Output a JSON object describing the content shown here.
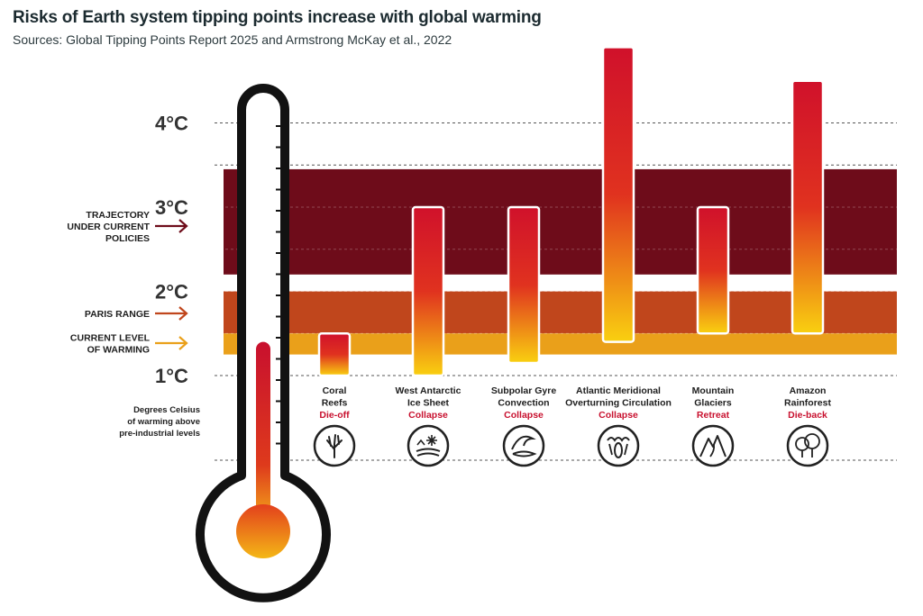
{
  "title": "Risks of Earth system tipping points increase with global warming",
  "subtitle": "Sources: Global Tipping Points Report 2025 and Armstrong McKay et al., 2022",
  "colors": {
    "trajectory_band": "#6e0c1a",
    "paris_band": "#c0461c",
    "current_band": "#eaa01a",
    "bar_top": "#d0112b",
    "bar_bottom": "#f9d010",
    "effect_text": "#c8102e",
    "thermometer_outline": "#121212"
  },
  "chart_data": {
    "type": "bar",
    "subtype": "floating-range",
    "unit": "°C",
    "y_ticks": [
      {
        "value": 1,
        "label": "1°C"
      },
      {
        "value": 2,
        "label": "2°C"
      },
      {
        "value": 3,
        "label": "3°C"
      },
      {
        "value": 4,
        "label": "4°C"
      }
    ],
    "ylim": [
      0,
      4.5
    ],
    "bands": [
      {
        "name": "Trajectory under current policies",
        "label_lines": [
          "TRAJECTORY",
          "UNDER CURRENT",
          "POLICIES"
        ],
        "from": 2.2,
        "to": 3.45
      },
      {
        "name": "Paris range",
        "label_lines": [
          "PARIS RANGE"
        ],
        "from": 1.5,
        "to": 2.0
      },
      {
        "name": "Current level of warming",
        "label_lines": [
          "CURRENT LEVEL",
          "OF WARMING"
        ],
        "from": 1.25,
        "to": 1.5
      }
    ],
    "categories": [
      {
        "name_lines": [
          "Coral",
          "Reefs"
        ],
        "effect": "Die-off",
        "icon": "coral-icon",
        "low": 1.0,
        "high": 1.5
      },
      {
        "name_lines": [
          "West Antarctic",
          "Ice Sheet"
        ],
        "effect": "Collapse",
        "icon": "ice-sheet-icon",
        "low": 1.0,
        "high": 3.0
      },
      {
        "name_lines": [
          "Subpolar Gyre",
          "Convection"
        ],
        "effect": "Collapse",
        "icon": "wave-icon",
        "low": 1.15,
        "high": 3.0
      },
      {
        "name_lines": [
          "Atlantic Meridional",
          "Overturning Circulation"
        ],
        "effect": "Collapse",
        "icon": "ocean-current-icon",
        "low": 1.4,
        "high": 4.9
      },
      {
        "name_lines": [
          "Mountain",
          "Glaciers"
        ],
        "effect": "Retreat",
        "icon": "mountain-icon",
        "low": 1.5,
        "high": 3.0
      },
      {
        "name_lines": [
          "Amazon",
          "Rainforest"
        ],
        "effect": "Die-back",
        "icon": "forest-icon",
        "low": 1.5,
        "high": 4.5
      }
    ],
    "thermometer_value": 1.4,
    "axis_note_lines": [
      "Degrees Celsius",
      "of warming above",
      "pre-industrial levels"
    ]
  }
}
